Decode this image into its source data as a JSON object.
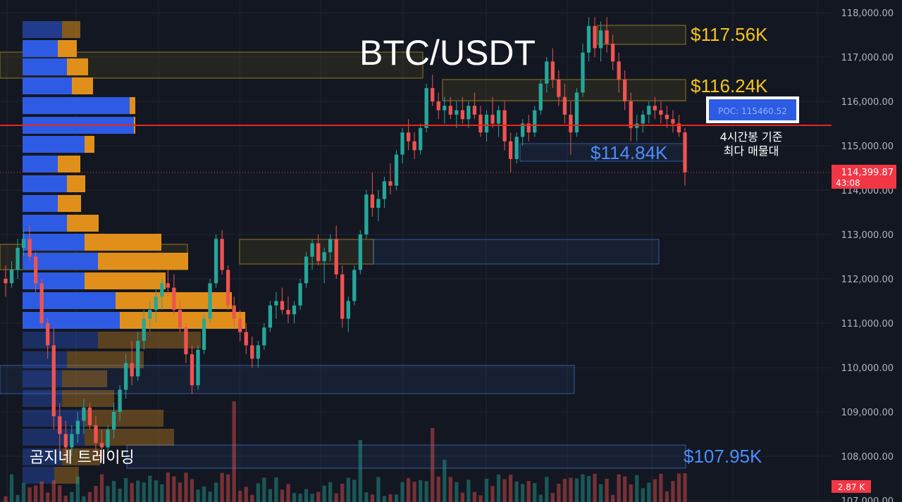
{
  "chart_data": {
    "type": "candlestick",
    "title": "BTC/USDT",
    "watermark": "곰지네 트레이딩",
    "y_axis": {
      "ylim": [
        107000,
        118300
      ],
      "ticks": [
        "118,000.00",
        "117,000.00",
        "116,000.00",
        "115,000.00",
        "114,000.00",
        "113,000.00",
        "112,000.00",
        "111,000.00",
        "110,000.00",
        "109,000.00",
        "108,000.00",
        "107,000.00"
      ],
      "tick_values": [
        118000,
        117000,
        116000,
        115000,
        114000,
        113000,
        112000,
        111000,
        110000,
        109000,
        108000,
        107000
      ]
    },
    "current_price": {
      "label": "114,399.87",
      "value": 114399.87,
      "countdown": "43:08",
      "color": "#f23645"
    },
    "volume_label": "2.87 K",
    "poc": {
      "label": "POC: 115460.52",
      "value": 115460.52,
      "note_line1": "4시간봉 기준",
      "note_line2": "최다 매물대"
    },
    "levels": [
      {
        "label": "$117.56K",
        "value": 117560,
        "color": "#f5c518"
      },
      {
        "label": "$116.24K",
        "value": 116240,
        "color": "#f5c518"
      },
      {
        "label": "$114.84K",
        "value": 114840,
        "color": "#4c8dff"
      },
      {
        "label": "$107.95K",
        "value": 107950,
        "color": "#4c8dff"
      }
    ],
    "colors": {
      "up": "#26a69a",
      "down": "#ef5350",
      "volume_profile_buy": "#2e5be3",
      "volume_profile_sell": "#e0901a",
      "background": "#131722"
    },
    "candles": [
      [
        112000,
        112300,
        111600,
        111900
      ],
      [
        111900,
        112400,
        111800,
        112200
      ],
      [
        112200,
        112900,
        112000,
        112700
      ],
      [
        112700,
        113100,
        112500,
        112900
      ],
      [
        112900,
        113200,
        112400,
        112500
      ],
      [
        112500,
        112600,
        111700,
        111900
      ],
      [
        111900,
        112000,
        110900,
        111000
      ],
      [
        111000,
        111100,
        110200,
        110500
      ],
      [
        110500,
        110900,
        108600,
        108900
      ],
      [
        108900,
        109200,
        108100,
        108500
      ],
      [
        108500,
        108800,
        107900,
        108200
      ],
      [
        108200,
        108700,
        108000,
        108500
      ],
      [
        108500,
        109000,
        108300,
        108800
      ],
      [
        108800,
        109300,
        108500,
        109100
      ],
      [
        109100,
        109200,
        108600,
        108700
      ],
      [
        108700,
        108900,
        108100,
        108300
      ],
      [
        108300,
        108600,
        107900,
        108200
      ],
      [
        108200,
        108700,
        108000,
        108600
      ],
      [
        108600,
        109200,
        108400,
        109000
      ],
      [
        109000,
        109600,
        108800,
        109500
      ],
      [
        109500,
        110300,
        109300,
        110100
      ],
      [
        110100,
        110600,
        109600,
        109800
      ],
      [
        109800,
        110800,
        109700,
        110600
      ],
      [
        110600,
        111300,
        110400,
        111100
      ],
      [
        111100,
        111500,
        110800,
        111300
      ],
      [
        111300,
        111800,
        111000,
        111600
      ],
      [
        111600,
        112000,
        111300,
        111900
      ],
      [
        111900,
        112200,
        111600,
        111800
      ],
      [
        111800,
        112100,
        111200,
        111300
      ],
      [
        111300,
        111500,
        110800,
        110900
      ],
      [
        110900,
        111000,
        110100,
        110300
      ],
      [
        110300,
        110500,
        109400,
        109600
      ],
      [
        109600,
        110500,
        109500,
        110400
      ],
      [
        110400,
        111200,
        110300,
        111100
      ],
      [
        111100,
        112000,
        111000,
        111900
      ],
      [
        111900,
        113000,
        111800,
        112900
      ],
      [
        112900,
        113100,
        112100,
        112200
      ],
      [
        112200,
        112300,
        111300,
        111400
      ],
      [
        111400,
        111600,
        110900,
        111100
      ],
      [
        111100,
        111300,
        110600,
        110800
      ],
      [
        110800,
        111000,
        110300,
        110500
      ],
      [
        110500,
        110700,
        110000,
        110200
      ],
      [
        110200,
        110600,
        110000,
        110500
      ],
      [
        110500,
        111000,
        110400,
        110900
      ],
      [
        110900,
        111500,
        110800,
        111400
      ],
      [
        111400,
        111700,
        111100,
        111500
      ],
      [
        111500,
        111800,
        111200,
        111300
      ],
      [
        111300,
        111600,
        111000,
        111200
      ],
      [
        111200,
        111500,
        111000,
        111400
      ],
      [
        111400,
        112000,
        111300,
        111900
      ],
      [
        111900,
        112600,
        111800,
        112500
      ],
      [
        112500,
        112900,
        112200,
        112800
      ],
      [
        112800,
        113000,
        112300,
        112400
      ],
      [
        112400,
        112700,
        111900,
        112600
      ],
      [
        112600,
        113000,
        112400,
        112900
      ],
      [
        112900,
        113200,
        112000,
        112100
      ],
      [
        112100,
        112300,
        110900,
        111100
      ],
      [
        111100,
        111600,
        110800,
        111500
      ],
      [
        111500,
        112300,
        111400,
        112200
      ],
      [
        112200,
        113100,
        112100,
        113000
      ],
      [
        113000,
        114000,
        112900,
        113900
      ],
      [
        113900,
        114400,
        113400,
        113600
      ],
      [
        113600,
        114000,
        113300,
        113800
      ],
      [
        113800,
        114300,
        113600,
        114200
      ],
      [
        114200,
        114600,
        113900,
        114100
      ],
      [
        114100,
        114900,
        114000,
        114800
      ],
      [
        114800,
        115400,
        114600,
        115300
      ],
      [
        115300,
        115600,
        114900,
        115100
      ],
      [
        115100,
        115300,
        114700,
        114900
      ],
      [
        114900,
        115500,
        114800,
        115400
      ],
      [
        115400,
        116400,
        115300,
        116300
      ],
      [
        116300,
        116600,
        115900,
        116000
      ],
      [
        116000,
        116200,
        115600,
        115800
      ],
      [
        115800,
        116100,
        115500,
        115900
      ],
      [
        115900,
        116100,
        115600,
        115700
      ],
      [
        115700,
        116000,
        115400,
        115800
      ],
      [
        115800,
        116100,
        115500,
        115600
      ],
      [
        115600,
        116000,
        115400,
        115900
      ],
      [
        115900,
        116200,
        115600,
        115700
      ],
      [
        115700,
        115900,
        115200,
        115300
      ],
      [
        115300,
        115800,
        115100,
        115700
      ],
      [
        115700,
        116100,
        115400,
        115500
      ],
      [
        115500,
        115900,
        115200,
        115800
      ],
      [
        115800,
        116000,
        114900,
        115100
      ],
      [
        115100,
        115300,
        114400,
        114700
      ],
      [
        114700,
        115300,
        114600,
        115200
      ],
      [
        115200,
        115600,
        115000,
        115500
      ],
      [
        115500,
        115700,
        115100,
        115300
      ],
      [
        115300,
        115900,
        115200,
        115800
      ],
      [
        115800,
        116500,
        115700,
        116400
      ],
      [
        116400,
        117000,
        116200,
        116900
      ],
      [
        116900,
        117200,
        116300,
        116500
      ],
      [
        116500,
        116700,
        115900,
        116100
      ],
      [
        116100,
        116400,
        115500,
        115700
      ],
      [
        115700,
        116000,
        114800,
        115300
      ],
      [
        115300,
        116300,
        115200,
        116200
      ],
      [
        116200,
        117300,
        116100,
        117100
      ],
      [
        117100,
        117900,
        116900,
        117700
      ],
      [
        117700,
        117900,
        117000,
        117200
      ],
      [
        117200,
        117800,
        116900,
        117600
      ],
      [
        117600,
        117900,
        117100,
        117300
      ],
      [
        117300,
        117500,
        116700,
        116900
      ],
      [
        116900,
        117100,
        116200,
        116500
      ],
      [
        116500,
        116700,
        115800,
        116000
      ],
      [
        116000,
        116200,
        115100,
        115400
      ],
      [
        115400,
        115700,
        115100,
        115500
      ],
      [
        115500,
        115800,
        115300,
        115700
      ],
      [
        115700,
        116000,
        115500,
        115900
      ],
      [
        115900,
        116100,
        115600,
        115800
      ],
      [
        115800,
        116000,
        115500,
        115700
      ],
      [
        115700,
        115900,
        115400,
        115600
      ],
      [
        115600,
        115800,
        115300,
        115500
      ],
      [
        115500,
        115700,
        115200,
        115300
      ],
      [
        115300,
        115400,
        114100,
        114400
      ]
    ]
  }
}
